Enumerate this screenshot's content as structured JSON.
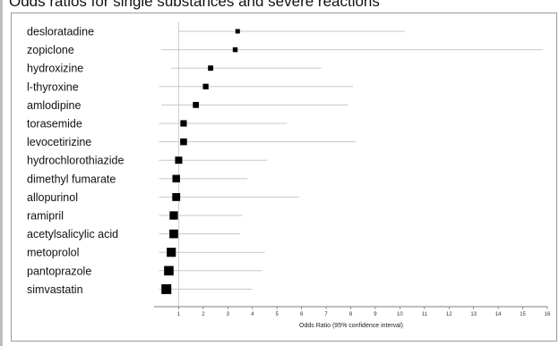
{
  "chart_data": {
    "type": "forest",
    "title": "Odds ratios for single substances and severe reactions",
    "xlabel": "Odds Ratio (95% confidence interval)",
    "xlim": [
      0,
      16
    ],
    "xticks": [
      1,
      2,
      3,
      4,
      5,
      6,
      7,
      8,
      9,
      10,
      11,
      12,
      13,
      14,
      15,
      16
    ],
    "reference_line": 1,
    "grid": false,
    "rows": [
      {
        "label": "desloratadine",
        "or": 3.4,
        "ci": [
          1.0,
          10.2
        ]
      },
      {
        "label": "zopiclone",
        "or": 3.3,
        "ci": [
          0.3,
          15.8
        ]
      },
      {
        "label": "hydroxizine",
        "or": 2.3,
        "ci": [
          0.7,
          6.8
        ]
      },
      {
        "label": "l-thyroxine",
        "or": 2.1,
        "ci": [
          0.2,
          8.1
        ]
      },
      {
        "label": "amlodipine",
        "or": 1.7,
        "ci": [
          0.3,
          7.9
        ]
      },
      {
        "label": "torasemide",
        "or": 1.2,
        "ci": [
          0.2,
          5.4
        ]
      },
      {
        "label": "levocetirizine",
        "or": 1.2,
        "ci": [
          0.2,
          8.2
        ]
      },
      {
        "label": "hydrochlorothiazide",
        "or": 1.0,
        "ci": [
          0.2,
          4.6
        ]
      },
      {
        "label": "dimethyl fumarate",
        "or": 0.9,
        "ci": [
          0.2,
          3.8
        ]
      },
      {
        "label": "allopurinol",
        "or": 0.9,
        "ci": [
          0.2,
          5.9
        ]
      },
      {
        "label": "ramipril",
        "or": 0.8,
        "ci": [
          0.2,
          3.6
        ]
      },
      {
        "label": "acetylsalicylic acid",
        "or": 0.8,
        "ci": [
          0.2,
          3.5
        ]
      },
      {
        "label": "metoprolol",
        "or": 0.7,
        "ci": [
          0.2,
          4.5
        ]
      },
      {
        "label": "pantoprazole",
        "or": 0.6,
        "ci": [
          0.2,
          4.4
        ]
      },
      {
        "label": "simvastatin",
        "or": 0.5,
        "ci": [
          0.2,
          4.0
        ]
      }
    ],
    "colors": {
      "marker": "#000000",
      "ci_line": "#c8c8c8",
      "reference": "#cfcfcf",
      "axis": "#555555"
    }
  }
}
